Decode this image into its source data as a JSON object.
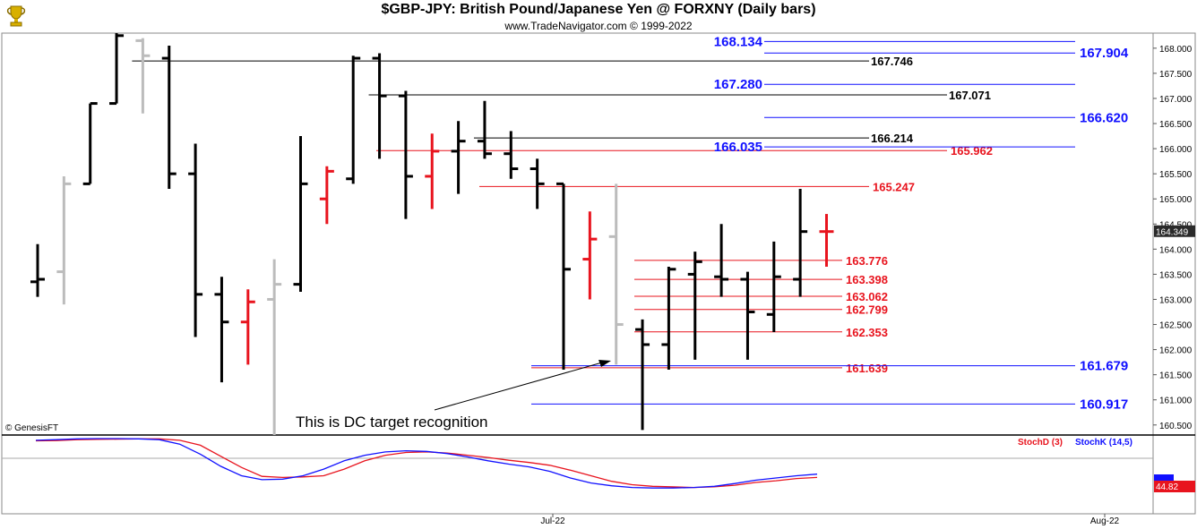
{
  "header": {
    "title": "$GBP-JPY:  British Pound/Japanese Yen @ FORXNY  (Daily bars)",
    "subtitle": "www.TradeNavigator.com © 1999-2022",
    "logo_icon": "trophy-icon"
  },
  "credit": "© GenesisFT",
  "annotation": {
    "text": "This is DC target recognition"
  },
  "colors": {
    "black": "#000000",
    "red": "#e8141e",
    "gray": "#bcbcbc",
    "blue": "#1010ff",
    "price_line_blue": "#2020a0"
  },
  "chart_data": [
    {
      "type": "ohlc",
      "title": "$GBP-JPY:  British Pound/Japanese Yen @ FORXNY  (Daily bars)",
      "ylim": [
        160.3,
        168.3
      ],
      "y_ticks": [
        "168.000",
        "167.500",
        "167.000",
        "166.500",
        "166.000",
        "165.500",
        "165.000",
        "164.500",
        "164.000",
        "163.500",
        "163.000",
        "162.500",
        "162.000",
        "161.500",
        "161.000",
        "160.500"
      ],
      "x_ticks": [
        "Jul-22",
        "Aug-22"
      ],
      "last_price": "164.349",
      "bars": [
        {
          "o": 163.35,
          "h": 164.1,
          "l": 163.05,
          "c": 163.4,
          "color": "black"
        },
        {
          "o": 163.55,
          "h": 165.45,
          "l": 162.9,
          "c": 165.3,
          "color": "gray"
        },
        {
          "o": 165.3,
          "h": 166.9,
          "l": 165.3,
          "c": 166.9,
          "color": "black"
        },
        {
          "o": 166.9,
          "h": 168.3,
          "l": 166.9,
          "c": 168.25,
          "color": "black"
        },
        {
          "o": 168.15,
          "h": 168.2,
          "l": 166.7,
          "c": 167.85,
          "color": "gray"
        },
        {
          "o": 167.8,
          "h": 168.05,
          "l": 165.2,
          "c": 165.5,
          "color": "black"
        },
        {
          "o": 165.5,
          "h": 166.1,
          "l": 162.25,
          "c": 163.1,
          "color": "black"
        },
        {
          "o": 163.1,
          "h": 163.45,
          "l": 161.35,
          "c": 162.55,
          "color": "black"
        },
        {
          "o": 162.55,
          "h": 163.2,
          "l": 161.7,
          "c": 162.95,
          "color": "red"
        },
        {
          "o": 163.0,
          "h": 163.8,
          "l": 160.3,
          "c": 163.3,
          "color": "gray"
        },
        {
          "o": 163.3,
          "h": 166.25,
          "l": 163.15,
          "c": 165.3,
          "color": "black"
        },
        {
          "o": 165.0,
          "h": 165.65,
          "l": 164.5,
          "c": 165.55,
          "color": "red"
        },
        {
          "o": 165.4,
          "h": 167.85,
          "l": 165.3,
          "c": 167.8,
          "color": "black"
        },
        {
          "o": 167.8,
          "h": 167.9,
          "l": 165.8,
          "c": 167.05,
          "color": "black"
        },
        {
          "o": 167.05,
          "h": 167.15,
          "l": 164.6,
          "c": 165.45,
          "color": "black"
        },
        {
          "o": 165.45,
          "h": 166.3,
          "l": 164.8,
          "c": 165.95,
          "color": "red"
        },
        {
          "o": 165.95,
          "h": 166.55,
          "l": 165.1,
          "c": 166.15,
          "color": "black"
        },
        {
          "o": 166.15,
          "h": 166.95,
          "l": 165.8,
          "c": 165.9,
          "color": "black"
        },
        {
          "o": 165.9,
          "h": 166.35,
          "l": 165.4,
          "c": 165.6,
          "color": "black"
        },
        {
          "o": 165.6,
          "h": 165.8,
          "l": 164.8,
          "c": 165.3,
          "color": "black"
        },
        {
          "o": 165.3,
          "h": 165.3,
          "l": 161.6,
          "c": 163.6,
          "color": "black"
        },
        {
          "o": 163.8,
          "h": 164.75,
          "l": 163.0,
          "c": 164.2,
          "color": "red"
        },
        {
          "o": 164.25,
          "h": 165.3,
          "l": 161.7,
          "c": 162.5,
          "color": "gray"
        },
        {
          "o": 162.4,
          "h": 162.6,
          "l": 160.4,
          "c": 162.1,
          "color": "black"
        },
        {
          "o": 162.1,
          "h": 163.65,
          "l": 161.6,
          "c": 163.6,
          "color": "black"
        },
        {
          "o": 163.5,
          "h": 163.95,
          "l": 161.8,
          "c": 163.75,
          "color": "black"
        },
        {
          "o": 163.45,
          "h": 164.5,
          "l": 163.05,
          "c": 163.4,
          "color": "black"
        },
        {
          "o": 163.4,
          "h": 163.55,
          "l": 161.8,
          "c": 162.75,
          "color": "black"
        },
        {
          "o": 162.7,
          "h": 164.15,
          "l": 162.35,
          "c": 163.45,
          "color": "black"
        },
        {
          "o": 163.4,
          "h": 165.2,
          "l": 163.05,
          "c": 164.35,
          "color": "black"
        },
        {
          "o": 164.35,
          "h": 164.7,
          "l": 163.65,
          "c": 164.35,
          "color": "red"
        }
      ],
      "levels": [
        {
          "value": 167.746,
          "label": "167.746",
          "color": "black",
          "start_bar": 4,
          "end_bar": 19.5
        },
        {
          "value": 167.071,
          "label": "167.071",
          "color": "black",
          "start_bar": 13,
          "end_bar": 23.5
        },
        {
          "value": 166.214,
          "label": "166.214",
          "color": "black",
          "start_bar": 17,
          "end_bar": 20
        },
        {
          "value": 165.962,
          "label": "165.962",
          "color": "red",
          "start_bar": 13,
          "end_bar": 23.5
        },
        {
          "value": 165.247,
          "label": "165.247",
          "color": "red",
          "start_bar": 17,
          "end_bar": 20
        },
        {
          "value": 163.776,
          "label": "163.776",
          "color": "red",
          "start_bar": 23,
          "end_bar": 0
        },
        {
          "value": 163.398,
          "label": "163.398",
          "color": "red",
          "start_bar": 23,
          "end_bar": 0
        },
        {
          "value": 163.062,
          "label": "163.062",
          "color": "red",
          "start_bar": 23,
          "end_bar": 0
        },
        {
          "value": 162.799,
          "label": "162.799",
          "color": "red",
          "start_bar": 23,
          "end_bar": 0
        },
        {
          "value": 162.353,
          "label": "162.353",
          "color": "red",
          "start_bar": 23,
          "end_bar": 0
        },
        {
          "value": 161.639,
          "label": "161.639",
          "color": "red",
          "start_bar": 19,
          "end_bar": 0
        },
        {
          "value": 168.134,
          "label": "168.134",
          "color": "blue",
          "start_bar": 24,
          "end_bar": 0
        },
        {
          "value": 167.904,
          "label": "167.904",
          "color": "blue",
          "start_bar": 24,
          "end_bar": 0
        },
        {
          "value": 167.28,
          "label": "167.280",
          "color": "blue",
          "start_bar": 24,
          "end_bar": 0
        },
        {
          "value": 166.62,
          "label": "166.620",
          "color": "blue",
          "start_bar": 24,
          "end_bar": 0
        },
        {
          "value": 166.035,
          "label": "166.035",
          "color": "blue",
          "start_bar": 24,
          "end_bar": 0
        },
        {
          "value": 161.679,
          "label": "161.679",
          "color": "blue",
          "start_bar": 19,
          "end_bar": 0
        },
        {
          "value": 160.917,
          "label": "160.917",
          "color": "blue",
          "start_bar": 19,
          "end_bar": 0
        }
      ]
    },
    {
      "type": "line",
      "series": [
        {
          "name": "StochD (3)",
          "color": "red",
          "values": [
            96,
            96.5,
            98,
            98.5,
            99,
            99.5,
            99.5,
            97,
            88,
            68,
            48,
            32,
            30,
            31,
            33,
            45,
            60,
            70,
            75,
            76,
            74,
            70,
            66,
            61,
            57,
            52,
            43,
            33,
            23,
            17,
            14,
            13,
            12,
            13,
            16,
            21,
            24,
            28,
            30
          ]
        },
        {
          "name": "StochK (14,5)",
          "color": "blue",
          "values": [
            97,
            98,
            99.5,
            100,
            100,
            99.5,
            98,
            90,
            72,
            50,
            33,
            26,
            27,
            33,
            45,
            60,
            70,
            76,
            78,
            77,
            73,
            67,
            60,
            54,
            49,
            41,
            29,
            20,
            15,
            12,
            11,
            11,
            12,
            14,
            19,
            25,
            29,
            33,
            36
          ]
        }
      ],
      "last_value": "44.82"
    }
  ]
}
